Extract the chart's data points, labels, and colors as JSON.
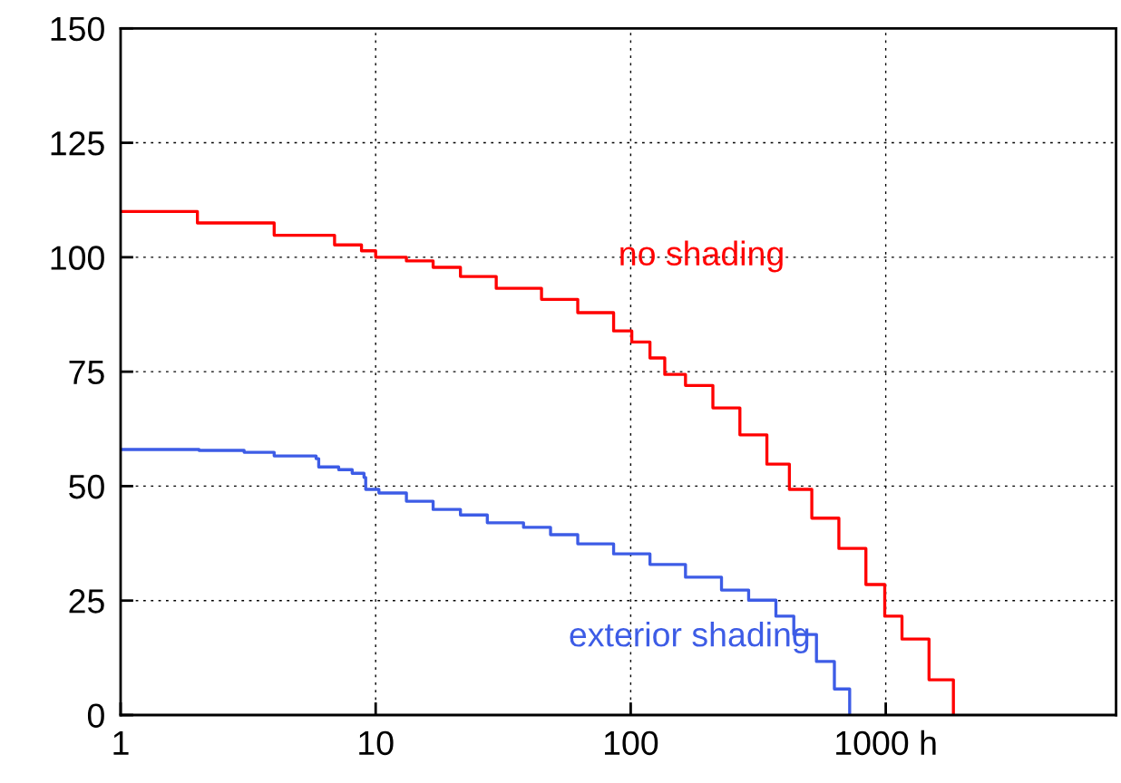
{
  "chart_data": {
    "type": "step",
    "log": "x",
    "grid": true,
    "xlim": [
      1,
      8000
    ],
    "ylim": [
      0,
      150
    ],
    "xticks": [
      1,
      10,
      100,
      {
        "value": 1000,
        "label": "1000 h"
      }
    ],
    "yticks": [
      0,
      25,
      50,
      75,
      100,
      125,
      150
    ],
    "series": [
      {
        "name": "no shading",
        "color": "#ff0000",
        "x": [
          1,
          2.0,
          4.0,
          6.9,
          8.8,
          10,
          13.2,
          16.8,
          21.5,
          29.7,
          44.7,
          62,
          85.7,
          101,
          119,
          136,
          164,
          210,
          268,
          342,
          419,
          513,
          655,
          836,
          991,
          1158,
          1478,
          1842
        ],
        "values": [
          110,
          107.5,
          104.8,
          102.7,
          101.4,
          100,
          99.2,
          97.8,
          95.8,
          93.2,
          90.8,
          87.9,
          83.9,
          81.5,
          78,
          74.4,
          72,
          67.1,
          61.2,
          54.8,
          49.3,
          43,
          36.4,
          28.5,
          21.6,
          16.6,
          7.7,
          0
        ]
      },
      {
        "name": "exterior shading",
        "color": "#3d5ce6",
        "x": [
          1,
          2.03,
          3.05,
          4.0,
          5.84,
          5.98,
          7.16,
          8.09,
          9.0,
          9.14,
          10.3,
          13.2,
          16.8,
          21.5,
          27.4,
          38,
          48.5,
          62,
          85.7,
          119,
          164,
          227,
          290,
          371,
          436,
          535,
          629,
          722
        ],
        "values": [
          58,
          57.8,
          57.4,
          56.6,
          56,
          54.2,
          53.6,
          52.8,
          51.9,
          49.3,
          48.5,
          46.7,
          44.9,
          43.7,
          42,
          41,
          39.4,
          37.4,
          35.2,
          32.9,
          30.1,
          27.3,
          25.1,
          21.6,
          17.6,
          11.7,
          5.7,
          0
        ]
      }
    ]
  }
}
